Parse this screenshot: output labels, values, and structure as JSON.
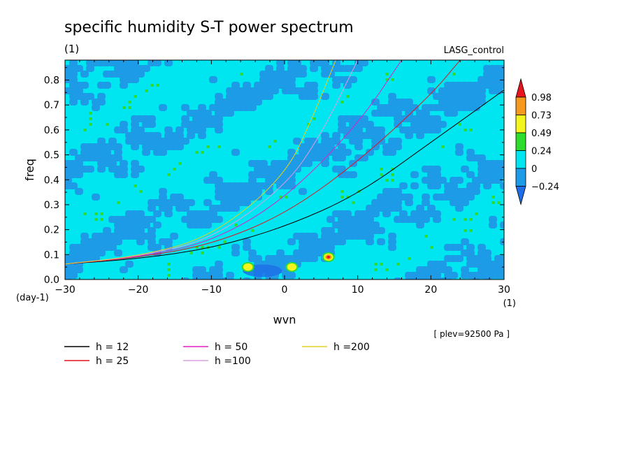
{
  "chart_data": {
    "type": "heatmap",
    "title": "specific humidity S-T power spectrum",
    "subtitle_units": "(1)",
    "run_label": "LASG_control",
    "xlabel": "wvn",
    "ylabel": "freq",
    "x_units": "(1)",
    "y_units": "(day-1)",
    "xlim": [
      -30,
      30
    ],
    "ylim": [
      0,
      0.88
    ],
    "x_ticks": [
      "-30",
      "-20",
      "-10",
      "0",
      "10",
      "20",
      "30"
    ],
    "y_ticks": [
      "0.0",
      "0.1",
      "0.2",
      "0.3",
      "0.4",
      "0.5",
      "0.6",
      "0.7",
      "0.8"
    ],
    "level_note": "[ plev=92500 Pa ]",
    "colorbar": {
      "labels": [
        "0.98",
        "0.73",
        "0.49",
        "0.24",
        "0",
        "-0.24"
      ],
      "colors": [
        "#e8141e",
        "#f59a1e",
        "#f5f51e",
        "#2ddc2d",
        "#00e6f0",
        "#1e9be6",
        "#1e6ee6"
      ]
    },
    "field_description_levels": {
      "dominant": "0",
      "secondary": "-0.24",
      "sparse": "0.24"
    },
    "hotspots": [
      {
        "x": 6,
        "y": 0.09,
        "level": "0.98"
      },
      {
        "x": 1,
        "y": 0.05,
        "level": "0.49"
      },
      {
        "x": -5,
        "y": 0.05,
        "level": "0.49"
      }
    ],
    "series": [
      {
        "name": "h = 12",
        "color": "#000000",
        "h": 12,
        "x": [
          -30,
          -20,
          -10,
          0,
          10,
          20,
          30
        ],
        "y": [
          0.062,
          0.083,
          0.125,
          0.21,
          0.34,
          0.55,
          0.76
        ]
      },
      {
        "name": "h = 25",
        "color": "#e0141e",
        "h": 25,
        "x": [
          -30,
          -20,
          -10,
          0,
          10,
          20,
          24
        ],
        "y": [
          0.062,
          0.088,
          0.14,
          0.26,
          0.47,
          0.74,
          0.88
        ]
      },
      {
        "name": "h = 50",
        "color": "#e01ec8",
        "h": 50,
        "x": [
          -30,
          -20,
          -10,
          0,
          10,
          16
        ],
        "y": [
          0.062,
          0.09,
          0.15,
          0.32,
          0.62,
          0.88
        ]
      },
      {
        "name": "h =100",
        "color": "#d8a0e0",
        "h": 100,
        "x": [
          -30,
          -20,
          -10,
          0,
          5,
          10
        ],
        "y": [
          0.062,
          0.092,
          0.16,
          0.37,
          0.58,
          0.88
        ]
      },
      {
        "name": "h =200",
        "color": "#e6d21e",
        "h": 200,
        "x": [
          -30,
          -20,
          -10,
          0,
          4,
          7
        ],
        "y": [
          0.062,
          0.093,
          0.17,
          0.41,
          0.66,
          0.88
        ]
      }
    ]
  }
}
